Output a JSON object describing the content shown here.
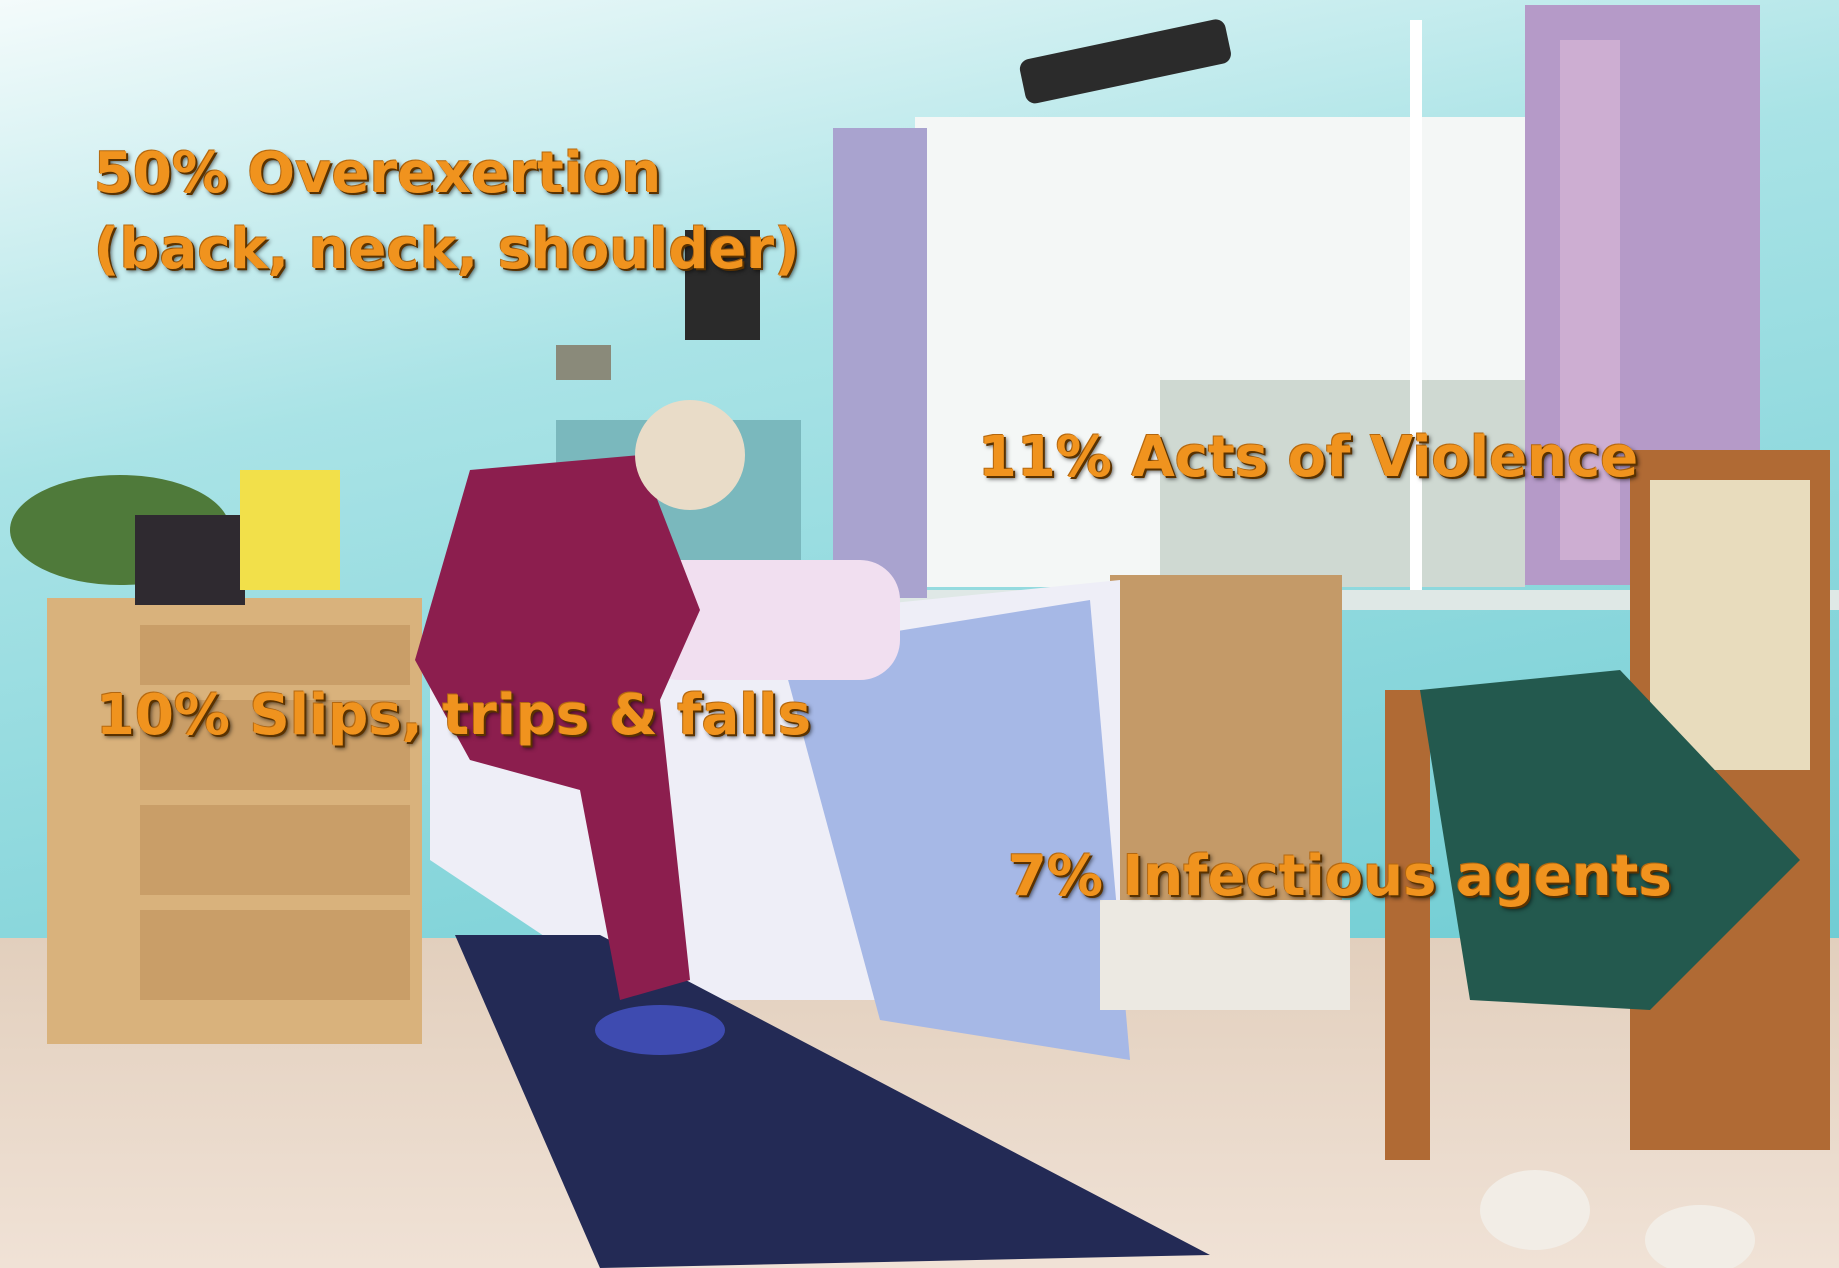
{
  "overlays": [
    {
      "lines": [
        "50% Overexertion",
        "(back, neck, shoulder)"
      ]
    },
    {
      "lines": [
        "11% Acts of Violence"
      ]
    },
    {
      "lines": [
        "10% Slips, trips & falls"
      ]
    },
    {
      "lines": [
        "7% Infectious agents"
      ]
    }
  ]
}
